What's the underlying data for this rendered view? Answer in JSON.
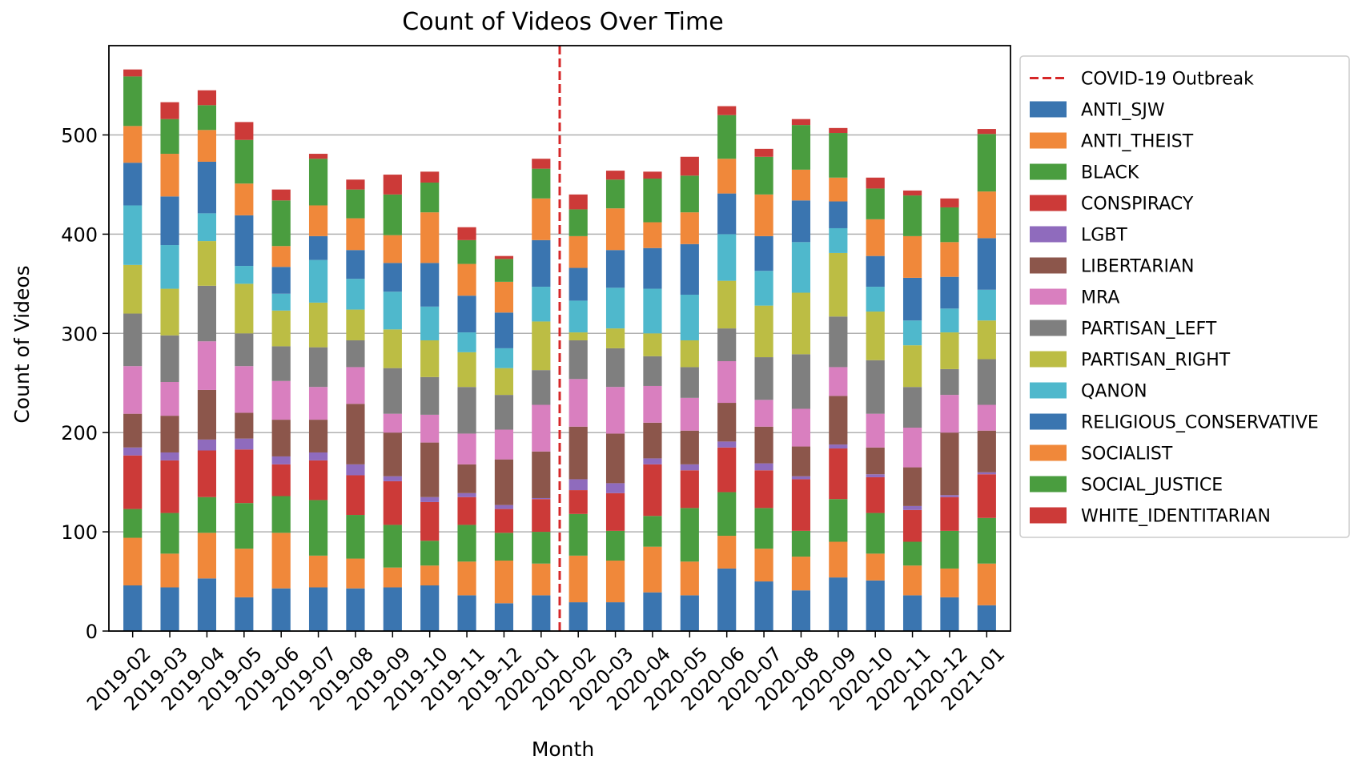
{
  "chart_data": {
    "type": "bar",
    "stacked": true,
    "title": "Count of Videos Over Time",
    "xlabel": "Month",
    "ylabel": "Count of Videos",
    "ylim": [
      0,
      590
    ],
    "yticks": [
      0,
      100,
      200,
      300,
      400,
      500
    ],
    "grid": "horizontal",
    "legend_placement": "outside-right",
    "categories": [
      "2019-02",
      "2019-03",
      "2019-04",
      "2019-05",
      "2019-06",
      "2019-07",
      "2019-08",
      "2019-09",
      "2019-10",
      "2019-11",
      "2019-12",
      "2020-01",
      "2020-02",
      "2020-03",
      "2020-04",
      "2020-05",
      "2020-06",
      "2020-07",
      "2020-08",
      "2020-09",
      "2020-10",
      "2020-11",
      "2020-12",
      "2021-01"
    ],
    "annotation": {
      "label": "COVID-19 Outbreak",
      "x_between": [
        "2020-01",
        "2020-02"
      ],
      "color": "#d62728",
      "style": "dashed"
    },
    "series": [
      {
        "name": "ANTI_SJW",
        "color": "#3a75b0",
        "values": [
          46,
          44,
          53,
          34,
          43,
          44,
          43,
          44,
          46,
          36,
          28,
          36,
          29,
          29,
          39,
          36,
          63,
          50,
          41,
          54,
          51,
          36,
          34,
          26
        ]
      },
      {
        "name": "ANTI_THEIST",
        "color": "#f0883a",
        "values": [
          48,
          34,
          46,
          49,
          56,
          32,
          30,
          20,
          20,
          34,
          43,
          32,
          47,
          42,
          46,
          34,
          33,
          33,
          34,
          36,
          27,
          30,
          29,
          42
        ]
      },
      {
        "name": "BLACK",
        "color": "#4a9d3f",
        "values": [
          29,
          41,
          36,
          46,
          37,
          56,
          44,
          43,
          25,
          37,
          28,
          32,
          42,
          30,
          31,
          54,
          44,
          41,
          26,
          43,
          41,
          24,
          38,
          46
        ]
      },
      {
        "name": "CONSPIRACY",
        "color": "#cc3a38",
        "values": [
          54,
          53,
          47,
          54,
          32,
          40,
          40,
          44,
          39,
          28,
          24,
          33,
          24,
          38,
          52,
          38,
          45,
          38,
          52,
          51,
          36,
          32,
          34,
          44
        ]
      },
      {
        "name": "LGBT",
        "color": "#8f6bbd",
        "values": [
          8,
          8,
          11,
          11,
          8,
          8,
          11,
          5,
          5,
          4,
          4,
          1,
          11,
          10,
          6,
          6,
          6,
          7,
          3,
          4,
          3,
          4,
          2,
          2
        ]
      },
      {
        "name": "LIBERTARIAN",
        "color": "#8c564b",
        "values": [
          34,
          37,
          50,
          26,
          37,
          33,
          61,
          44,
          55,
          29,
          46,
          47,
          53,
          50,
          36,
          34,
          39,
          37,
          30,
          49,
          27,
          39,
          63,
          42
        ]
      },
      {
        "name": "MRA",
        "color": "#d97fbf",
        "values": [
          48,
          34,
          49,
          47,
          39,
          33,
          37,
          19,
          28,
          31,
          30,
          47,
          48,
          47,
          37,
          33,
          42,
          27,
          38,
          29,
          34,
          40,
          38,
          26
        ]
      },
      {
        "name": "PARTISAN_LEFT",
        "color": "#7f7f7f",
        "values": [
          53,
          47,
          56,
          33,
          35,
          40,
          27,
          46,
          38,
          47,
          35,
          35,
          39,
          39,
          30,
          31,
          33,
          43,
          55,
          51,
          54,
          41,
          26,
          46
        ]
      },
      {
        "name": "PARTISAN_RIGHT",
        "color": "#bcbd44",
        "values": [
          49,
          47,
          45,
          50,
          36,
          45,
          31,
          39,
          37,
          35,
          27,
          49,
          8,
          20,
          23,
          27,
          48,
          52,
          62,
          64,
          49,
          42,
          37,
          39
        ]
      },
      {
        "name": "QANON",
        "color": "#4fb8cc",
        "values": [
          60,
          44,
          28,
          18,
          17,
          43,
          31,
          38,
          34,
          20,
          20,
          35,
          32,
          41,
          45,
          46,
          47,
          35,
          51,
          25,
          25,
          25,
          24,
          31
        ]
      },
      {
        "name": "RELIGIOUS_CONSERVATIVE",
        "color": "#3a75b0",
        "values": [
          43,
          49,
          52,
          51,
          27,
          24,
          29,
          29,
          44,
          37,
          36,
          47,
          33,
          38,
          41,
          51,
          41,
          35,
          42,
          27,
          31,
          43,
          32,
          52
        ]
      },
      {
        "name": "SOCIALIST",
        "color": "#f0883a",
        "values": [
          37,
          43,
          32,
          32,
          21,
          31,
          32,
          28,
          51,
          32,
          31,
          42,
          32,
          42,
          26,
          32,
          35,
          42,
          31,
          24,
          37,
          42,
          35,
          47
        ]
      },
      {
        "name": "SOCIAL_JUSTICE",
        "color": "#4a9d3f",
        "values": [
          50,
          35,
          25,
          44,
          46,
          47,
          29,
          41,
          30,
          24,
          23,
          30,
          27,
          29,
          44,
          37,
          44,
          38,
          45,
          45,
          31,
          41,
          35,
          58
        ]
      },
      {
        "name": "WHITE_IDENTITARIAN",
        "color": "#cc3a38",
        "values": [
          7,
          17,
          15,
          18,
          11,
          5,
          10,
          20,
          11,
          13,
          3,
          10,
          15,
          9,
          7,
          19,
          9,
          8,
          6,
          5,
          11,
          5,
          9,
          5
        ]
      }
    ]
  }
}
